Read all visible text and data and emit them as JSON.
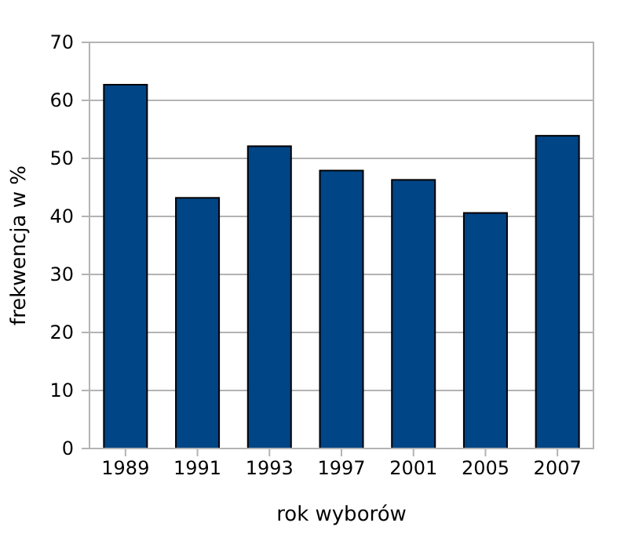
{
  "chart_data": {
    "type": "bar",
    "xlabel": "rok wyborów",
    "ylabel": "frekwencja w %",
    "categories": [
      "1989",
      "1991",
      "1993",
      "1997",
      "2001",
      "2005",
      "2007"
    ],
    "values": [
      62.7,
      43.2,
      52.1,
      47.9,
      46.3,
      40.6,
      53.9
    ],
    "color": "#004586",
    "ylim": [
      0,
      70
    ],
    "yticks": [
      0,
      10,
      20,
      30,
      40,
      50,
      60,
      70
    ],
    "grid": "y"
  }
}
